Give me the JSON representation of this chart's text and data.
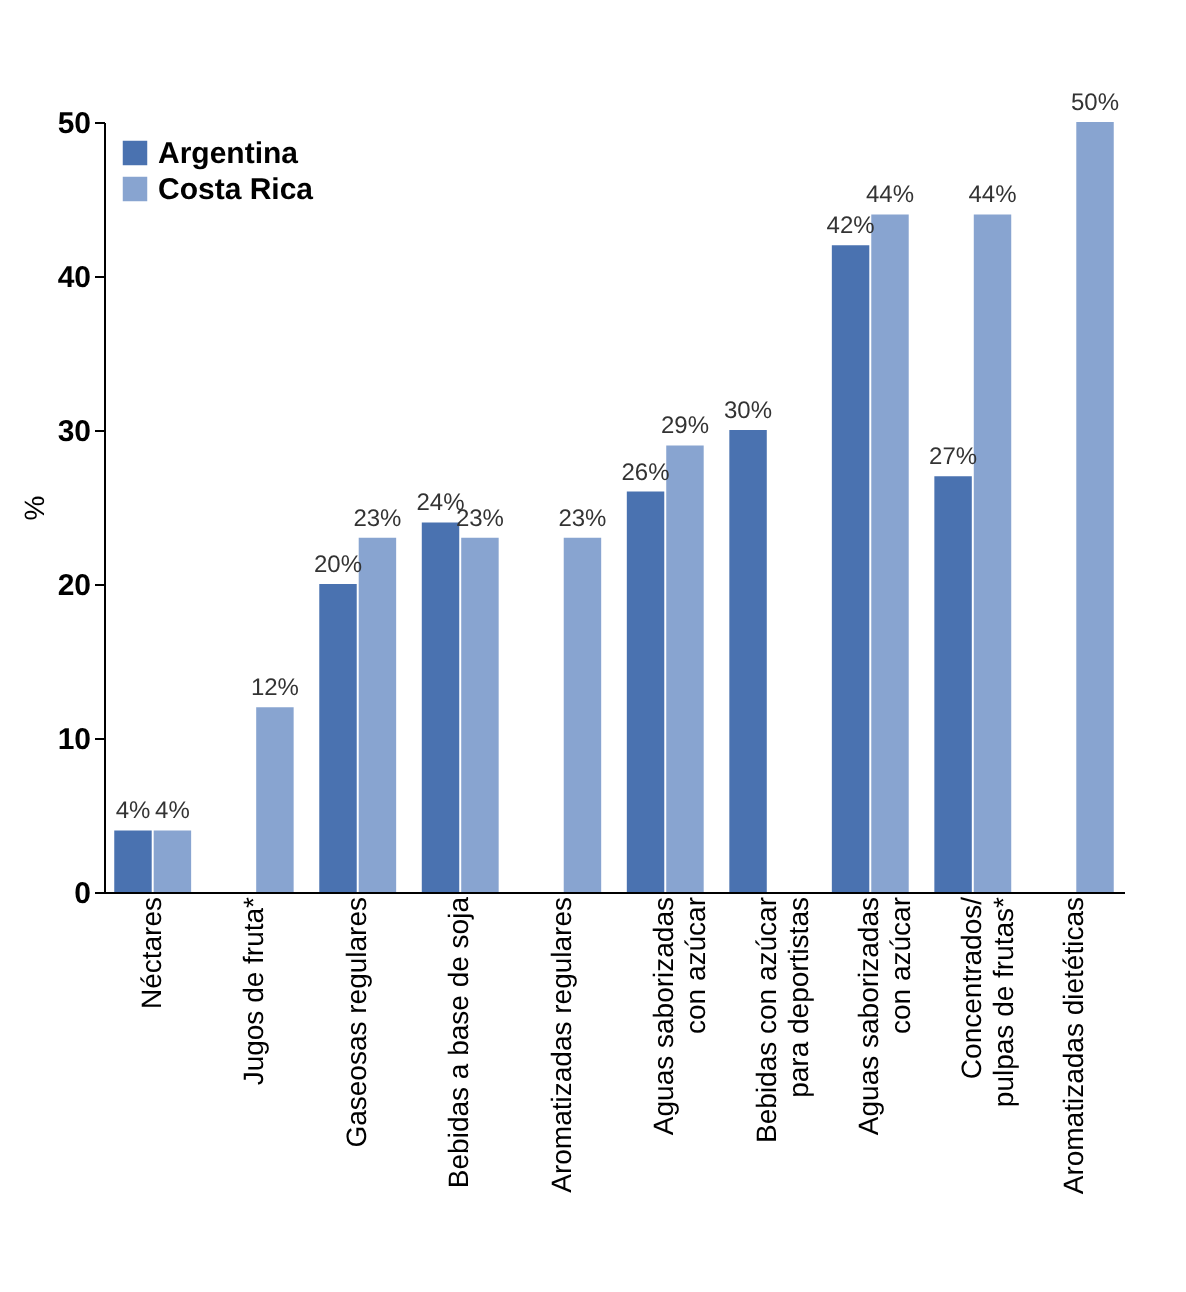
{
  "chart_data": {
    "type": "bar",
    "ylabel": "%",
    "categories": [
      "Néctares",
      "Jugos de fruta*",
      "Gaseosas regulares",
      "Bebidas a base de soja",
      "Aromatizadas regulares",
      "Aguas saborizadas\ncon azúcar",
      "Bebidas con azúcar\npara deportistas",
      "Aguas saborizadas\ncon azúcar",
      "Concentrados/\npulpas de frutas*",
      "Aromatizadas dietéticas"
    ],
    "series": [
      {
        "name": "Argentina",
        "color": "#4a72b0",
        "values": [
          4,
          null,
          20,
          24,
          null,
          26,
          30,
          42,
          27,
          null
        ],
        "value_labels": [
          "4%",
          null,
          "20%",
          "24%",
          null,
          "26%",
          "30%",
          "42%",
          "27%",
          null
        ]
      },
      {
        "name": "Costa Rica",
        "color": "#88a4d0",
        "values": [
          4,
          12,
          23,
          23,
          23,
          29,
          null,
          44,
          44,
          50
        ],
        "value_labels": [
          "4%",
          "12%",
          "23%",
          "23%",
          "23%",
          "29%",
          null,
          "44%",
          "44%",
          "50%"
        ]
      }
    ],
    "ylim": [
      0,
      50
    ],
    "yticks": [
      0,
      10,
      20,
      30,
      40,
      50
    ],
    "grid": false,
    "legend": "top left"
  }
}
